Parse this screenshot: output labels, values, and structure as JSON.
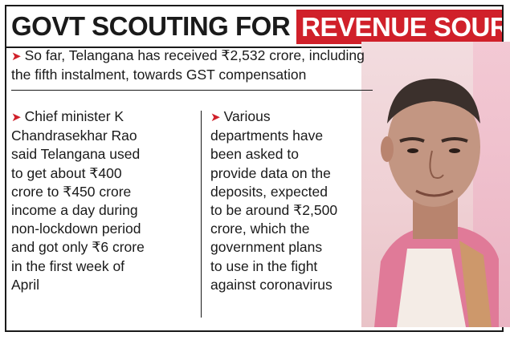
{
  "headline": {
    "part_black": "GOVT SCOUTING FOR",
    "part_red": "REVENUE SOURCES"
  },
  "bullet_icon": "triangle-arrow",
  "colors": {
    "accent": "#d0202a",
    "text": "#1a1a1a"
  },
  "intro": {
    "text": "So far, Telangana has received ₹2,532 crore, including\nthe fifth instalment, towards GST compensation"
  },
  "left_column": {
    "text": "Chief minister K\nChandrasekhar Rao\nsaid Telangana used\nto get about ₹400\ncrore to ₹450 crore\nincome a day during\nnon-lockdown period\nand got only ₹6 crore\nin the first week of\nApril"
  },
  "right_column": {
    "text": "Various\ndepartments have\nbeen asked to\nprovide data on the\ndeposits, expected\nto be around ₹2,500\ncrore, which the\ngovernment plans\nto use in the fight\nagainst coronavirus"
  }
}
